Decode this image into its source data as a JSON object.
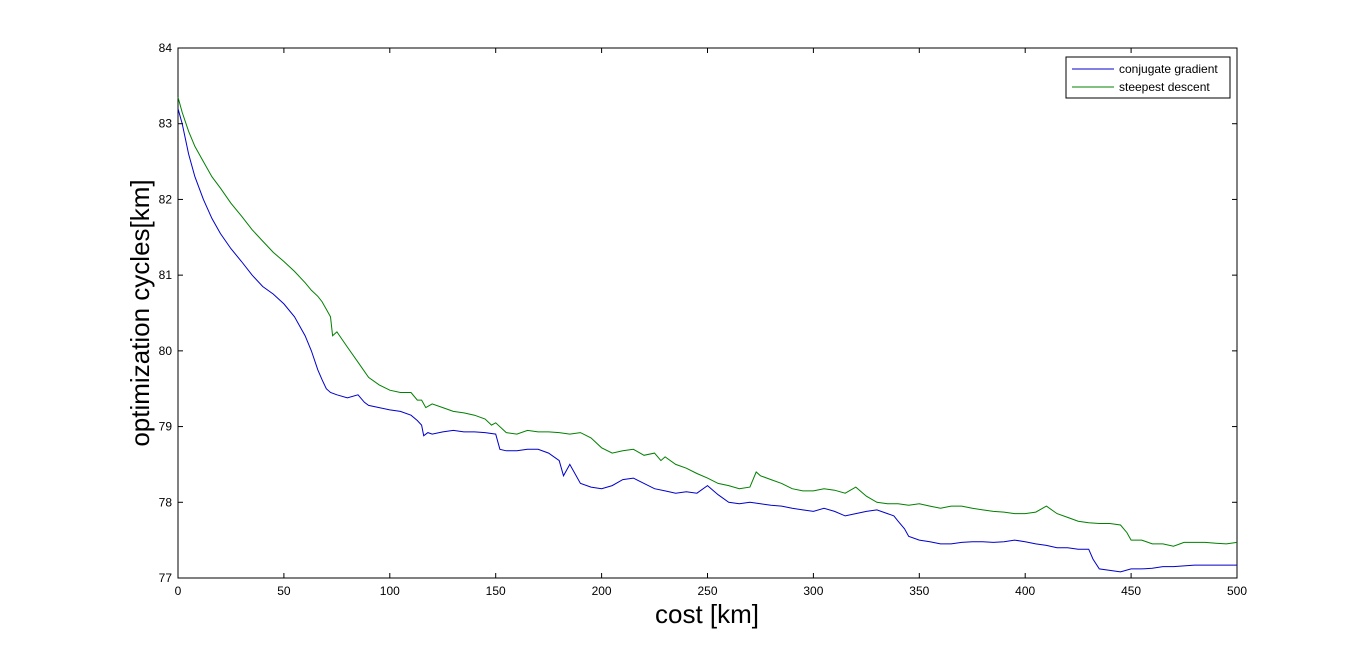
{
  "chart_data": {
    "type": "line",
    "xlabel": "cost [km]",
    "ylabel": "optimization cycles[km]",
    "xlim": [
      0,
      500
    ],
    "ylim": [
      77,
      84
    ],
    "xticks": [
      0,
      50,
      100,
      150,
      200,
      250,
      300,
      350,
      400,
      450,
      500
    ],
    "yticks": [
      77,
      78,
      79,
      80,
      81,
      82,
      83,
      84
    ],
    "grid": false,
    "legend_position": "top-right",
    "series": [
      {
        "name": "conjugate gradient",
        "color": "#0000cc",
        "x": [
          0,
          2,
          5,
          8,
          12,
          16,
          20,
          25,
          30,
          35,
          40,
          45,
          50,
          55,
          60,
          63,
          66,
          68,
          70,
          72,
          75,
          80,
          85,
          88,
          90,
          95,
          100,
          105,
          110,
          113,
          115,
          116,
          118,
          120,
          125,
          130,
          135,
          140,
          145,
          150,
          152,
          155,
          160,
          165,
          170,
          175,
          180,
          182,
          185,
          190,
          195,
          200,
          205,
          210,
          215,
          220,
          225,
          230,
          235,
          240,
          245,
          250,
          255,
          260,
          265,
          270,
          275,
          280,
          285,
          290,
          295,
          300,
          305,
          310,
          315,
          320,
          325,
          330,
          335,
          338,
          340,
          343,
          345,
          350,
          355,
          360,
          365,
          370,
          375,
          380,
          385,
          390,
          395,
          400,
          405,
          410,
          415,
          420,
          425,
          430,
          432,
          435,
          440,
          445,
          450,
          455,
          460,
          465,
          470,
          475,
          480,
          485,
          490,
          495,
          500
        ],
        "values": [
          83.2,
          83.0,
          82.6,
          82.3,
          82.0,
          81.75,
          81.55,
          81.35,
          81.18,
          81.0,
          80.85,
          80.75,
          80.62,
          80.45,
          80.2,
          80.0,
          79.75,
          79.62,
          79.5,
          79.45,
          79.42,
          79.38,
          79.42,
          79.32,
          79.28,
          79.25,
          79.22,
          79.2,
          79.15,
          79.08,
          79.02,
          78.88,
          78.92,
          78.9,
          78.93,
          78.95,
          78.93,
          78.93,
          78.92,
          78.9,
          78.7,
          78.68,
          78.68,
          78.7,
          78.7,
          78.65,
          78.55,
          78.35,
          78.5,
          78.25,
          78.2,
          78.18,
          78.22,
          78.3,
          78.32,
          78.25,
          78.18,
          78.15,
          78.12,
          78.14,
          78.12,
          78.22,
          78.1,
          78.0,
          77.98,
          78.0,
          77.98,
          77.96,
          77.95,
          77.92,
          77.9,
          77.88,
          77.92,
          77.88,
          77.82,
          77.85,
          77.88,
          77.9,
          77.85,
          77.82,
          77.75,
          77.65,
          77.55,
          77.5,
          77.48,
          77.45,
          77.45,
          77.47,
          77.48,
          77.48,
          77.47,
          77.48,
          77.5,
          77.48,
          77.45,
          77.43,
          77.4,
          77.4,
          77.38,
          77.38,
          77.25,
          77.12,
          77.1,
          77.08,
          77.12,
          77.12,
          77.13,
          77.15,
          77.15,
          77.16,
          77.17,
          77.17,
          77.17,
          77.17,
          77.17
        ]
      },
      {
        "name": "steepest descent",
        "color": "#008000",
        "x": [
          0,
          2,
          5,
          8,
          12,
          16,
          20,
          25,
          30,
          35,
          40,
          45,
          50,
          55,
          60,
          63,
          66,
          68,
          70,
          72,
          73,
          75,
          80,
          85,
          90,
          95,
          100,
          105,
          110,
          113,
          115,
          117,
          120,
          125,
          130,
          135,
          140,
          145,
          148,
          150,
          155,
          160,
          165,
          170,
          175,
          180,
          185,
          190,
          195,
          200,
          205,
          210,
          215,
          220,
          225,
          228,
          230,
          235,
          240,
          245,
          250,
          255,
          260,
          265,
          270,
          273,
          275,
          280,
          285,
          290,
          295,
          300,
          305,
          310,
          315,
          320,
          325,
          330,
          335,
          340,
          345,
          350,
          355,
          360,
          365,
          370,
          375,
          380,
          385,
          390,
          395,
          400,
          405,
          410,
          415,
          420,
          425,
          430,
          435,
          440,
          445,
          448,
          450,
          455,
          460,
          465,
          470,
          475,
          480,
          485,
          490,
          495,
          500
        ],
        "values": [
          83.35,
          83.15,
          82.9,
          82.7,
          82.5,
          82.3,
          82.15,
          81.95,
          81.78,
          81.6,
          81.45,
          81.3,
          81.18,
          81.05,
          80.9,
          80.8,
          80.72,
          80.65,
          80.55,
          80.45,
          80.2,
          80.25,
          80.05,
          79.85,
          79.65,
          79.55,
          79.48,
          79.45,
          79.45,
          79.35,
          79.35,
          79.25,
          79.3,
          79.25,
          79.2,
          79.18,
          79.15,
          79.1,
          79.02,
          79.05,
          78.92,
          78.9,
          78.95,
          78.93,
          78.93,
          78.92,
          78.9,
          78.92,
          78.85,
          78.72,
          78.65,
          78.68,
          78.7,
          78.62,
          78.65,
          78.55,
          78.6,
          78.5,
          78.45,
          78.38,
          78.32,
          78.25,
          78.22,
          78.18,
          78.2,
          78.4,
          78.35,
          78.3,
          78.25,
          78.18,
          78.15,
          78.15,
          78.18,
          78.16,
          78.12,
          78.2,
          78.08,
          78.0,
          77.98,
          77.98,
          77.96,
          77.98,
          77.95,
          77.92,
          77.95,
          77.95,
          77.92,
          77.9,
          77.88,
          77.87,
          77.85,
          77.85,
          77.87,
          77.95,
          77.85,
          77.8,
          77.75,
          77.73,
          77.72,
          77.72,
          77.7,
          77.6,
          77.5,
          77.5,
          77.45,
          77.45,
          77.42,
          77.47,
          77.47,
          77.47,
          77.46,
          77.45,
          77.47
        ]
      }
    ]
  }
}
